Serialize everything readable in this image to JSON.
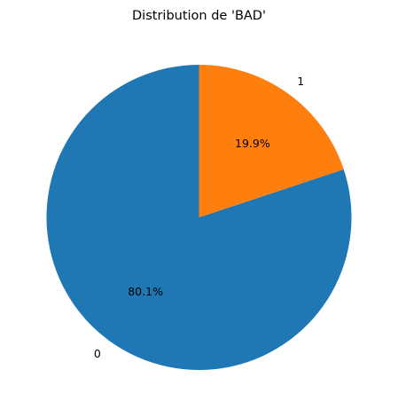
{
  "chart_data": {
    "type": "pie",
    "title": "Distribution de 'BAD'",
    "categories": [
      "0",
      "1"
    ],
    "values": [
      80.1,
      19.9
    ],
    "autopct_labels": [
      "80.1%",
      "19.9%"
    ],
    "colors": [
      "#1f77b4",
      "#ff7f0e"
    ],
    "start_angle_deg": 90,
    "direction": "counterclockwise",
    "legend": "none"
  }
}
